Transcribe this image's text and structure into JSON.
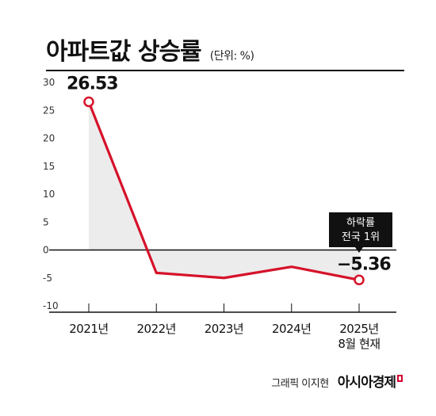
{
  "title": "아파트값 상승률",
  "unit_label": "(단위: %)",
  "credit": "그래픽 이지현",
  "logo_text": "아시아경제",
  "colors": {
    "line": "#d6122a",
    "fill": "#ececec",
    "axis": "#111111",
    "grid": "#bbbbbb"
  },
  "chart_data": {
    "type": "line",
    "categories": [
      "2021년",
      "2022년",
      "2023년",
      "2024년",
      "2025년 8월 현재"
    ],
    "x_labels": [
      [
        "2021년"
      ],
      [
        "2022년"
      ],
      [
        "2023년"
      ],
      [
        "2024년"
      ],
      [
        "2025년",
        "8월 현재"
      ]
    ],
    "values": [
      26.53,
      -4.1,
      -5.0,
      -3.0,
      -5.36
    ],
    "ylim": [
      -10,
      30
    ],
    "yticks": [
      "30",
      "25",
      "20",
      "15",
      "10",
      "5",
      "0",
      "-5",
      "-10"
    ],
    "ytick_values": [
      30,
      25,
      20,
      15,
      10,
      5,
      0,
      -5,
      -10
    ],
    "point_labels": [
      {
        "index": 0,
        "text": "26.53"
      },
      {
        "index": 4,
        "text": "−5.36"
      }
    ],
    "annotation": {
      "index": 4,
      "lines": [
        "하락률",
        "전국 1위"
      ]
    },
    "marked_points": [
      0,
      4
    ],
    "grid": false
  }
}
